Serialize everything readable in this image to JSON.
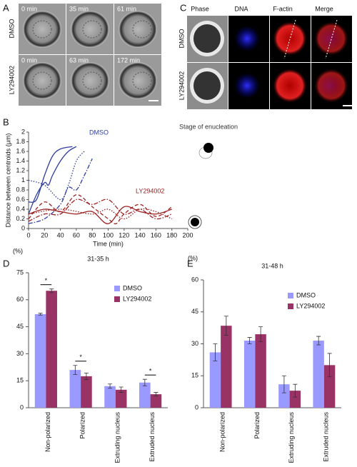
{
  "panel_labels": [
    "A",
    "B",
    "C",
    "D",
    "E"
  ],
  "panel_a": {
    "row_labels": [
      "DMSO",
      "LY294002"
    ],
    "time_labels": [
      [
        "0 min",
        "35 min",
        "61 min"
      ],
      [
        "0 min",
        "63 min",
        "172 min"
      ]
    ]
  },
  "panel_c": {
    "column_labels": [
      "Phase",
      "DNA",
      "F-actin",
      "Merge"
    ],
    "row_labels": [
      "DMSO",
      "LY294002"
    ]
  },
  "chart_data": [
    {
      "type": "line",
      "x_label": "Time (min)",
      "y_label": "Distance between centroids (μm)",
      "annotations": [
        {
          "text": "DMSO",
          "color": "#2e3d9e"
        },
        {
          "text": "LY294002",
          "color": "#9b2222"
        },
        {
          "text": "Stage of enucleation",
          "color": "#333333"
        }
      ],
      "xlim": [
        0,
        200
      ],
      "xticks": [
        0,
        20,
        40,
        60,
        80,
        100,
        120,
        140,
        160,
        180,
        200
      ],
      "ylim": [
        0,
        2
      ],
      "yticks": [
        0,
        0.2,
        0.4,
        0.6,
        0.8,
        1,
        1.2,
        1.4,
        1.6,
        1.8,
        2
      ],
      "series": [
        {
          "color": "#2e3d9e",
          "dash": "solid",
          "x": [
            0,
            10,
            20,
            30,
            40,
            55
          ],
          "values": [
            0.55,
            0.6,
            1.1,
            1.5,
            1.65,
            1.7
          ]
        },
        {
          "color": "#2e3d9e",
          "dash": "solid",
          "x": [
            0,
            10,
            20,
            25,
            30,
            40,
            50,
            60
          ],
          "values": [
            0.3,
            0.7,
            0.95,
            0.9,
            1.1,
            1.4,
            1.6,
            1.7
          ]
        },
        {
          "color": "#2e3d9e",
          "dash": "dotted",
          "x": [
            0,
            20,
            40,
            50,
            60,
            70
          ],
          "values": [
            1.0,
            0.9,
            0.6,
            0.9,
            1.4,
            1.6
          ]
        },
        {
          "color": "#2e3d9e",
          "dash": "dashdot",
          "x": [
            0,
            20,
            40,
            50,
            60,
            70,
            80
          ],
          "values": [
            0.1,
            0.2,
            0.5,
            0.85,
            0.8,
            1.1,
            1.45
          ]
        },
        {
          "color": "#9b2222",
          "dash": "solid",
          "x": [
            0,
            20,
            40,
            60,
            80,
            100,
            120,
            140,
            160,
            180
          ],
          "values": [
            0.3,
            0.4,
            0.35,
            0.3,
            0.35,
            0.1,
            0.45,
            0.35,
            0.3,
            0.4
          ]
        },
        {
          "color": "#9b2222",
          "dash": "dashed",
          "x": [
            0,
            20,
            40,
            60,
            80,
            100,
            110,
            120,
            140,
            160,
            180
          ],
          "values": [
            0.2,
            0.55,
            0.35,
            0.7,
            0.45,
            0.2,
            0.1,
            0.3,
            0.5,
            0.25,
            0.45
          ]
        },
        {
          "color": "#9b2222",
          "dash": "dashdot",
          "x": [
            0,
            20,
            40,
            60,
            80,
            100,
            120,
            140,
            160,
            180
          ],
          "values": [
            0.15,
            0.3,
            0.3,
            0.6,
            0.5,
            0.6,
            0.3,
            0.4,
            0.2,
            0.3
          ]
        },
        {
          "color": "#9b2222",
          "dash": "dotted",
          "x": [
            0,
            40,
            80,
            100,
            120,
            140,
            160,
            180
          ],
          "values": [
            0.3,
            0.4,
            0.3,
            0.4,
            0.2,
            0.4,
            0.35,
            0.2
          ]
        }
      ]
    },
    {
      "type": "bar",
      "title": "31-35 h",
      "y_label": "(%)",
      "legend": "upper right",
      "categories": [
        "Non-polarized",
        "Polarized",
        "Extruding nucleus",
        "Extruded nucleus"
      ],
      "ylim": [
        0,
        75
      ],
      "yticks": [
        0,
        15,
        30,
        45,
        60,
        75
      ],
      "significance": [
        "*",
        "*",
        null,
        "*"
      ],
      "series": [
        {
          "name": "DMSO",
          "color": "#9999ff",
          "values": [
            52,
            21,
            12,
            14
          ],
          "errors": [
            0.5,
            2.5,
            1.2,
            1.8
          ]
        },
        {
          "name": "LY294002",
          "color": "#993366",
          "values": [
            65,
            17.5,
            10,
            7.5
          ],
          "errors": [
            1,
            1.8,
            1.5,
            1
          ]
        }
      ]
    },
    {
      "type": "bar",
      "title": "31-48 h",
      "y_label": "(%)",
      "legend": "upper right",
      "categories": [
        "Non-polarized",
        "Polarized",
        "Extruding nucleus",
        "Extruded nucleus"
      ],
      "ylim": [
        0,
        60
      ],
      "yticks": [
        0,
        15,
        30,
        45,
        60
      ],
      "series": [
        {
          "name": "DMSO",
          "color": "#9999ff",
          "values": [
            26,
            31.5,
            11,
            31.5
          ],
          "errors": [
            4,
            1.5,
            4,
            2
          ]
        },
        {
          "name": "LY294002",
          "color": "#993366",
          "values": [
            38.5,
            34.5,
            8,
            20
          ],
          "errors": [
            4.5,
            3.5,
            3,
            5.5
          ]
        }
      ]
    }
  ]
}
